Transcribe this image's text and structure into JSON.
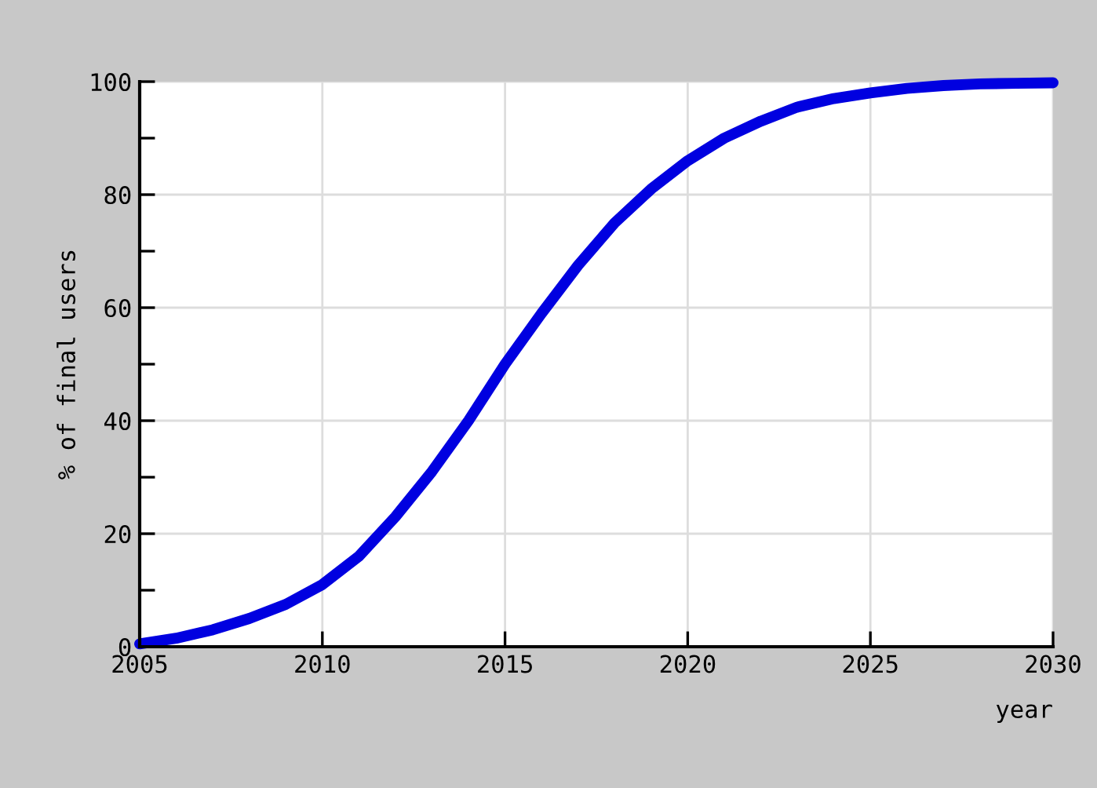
{
  "chart_data": {
    "type": "line",
    "xlabel": "year",
    "ylabel": "% of final users",
    "x": [
      2005,
      2006,
      2007,
      2008,
      2009,
      2010,
      2011,
      2012,
      2013,
      2014,
      2015,
      2016,
      2017,
      2018,
      2019,
      2020,
      2021,
      2022,
      2023,
      2024,
      2025,
      2026,
      2027,
      2028,
      2029,
      2030
    ],
    "series": [
      {
        "color": "#0000e0",
        "values": [
          0.5,
          1.5,
          3,
          5,
          7.5,
          11,
          16,
          23,
          31,
          40,
          50,
          59,
          67.5,
          75,
          81,
          86,
          90,
          93,
          95.5,
          97,
          98,
          98.8,
          99.3,
          99.6,
          99.7,
          99.8
        ]
      }
    ],
    "xlim": [
      2005,
      2030
    ],
    "xticks": [
      2005,
      2010,
      2015,
      2020,
      2025,
      2030
    ],
    "ylim": [
      0,
      100
    ],
    "yticks": [
      0,
      {
        "value": 10,
        "label": null
      },
      20,
      {
        "value": 30,
        "label": null
      },
      40,
      {
        "value": 50,
        "label": null
      },
      60,
      {
        "value": 70,
        "label": null
      },
      80,
      {
        "value": 90,
        "label": null
      },
      100
    ],
    "grid": true,
    "marker": "none",
    "line_style": "solid"
  }
}
